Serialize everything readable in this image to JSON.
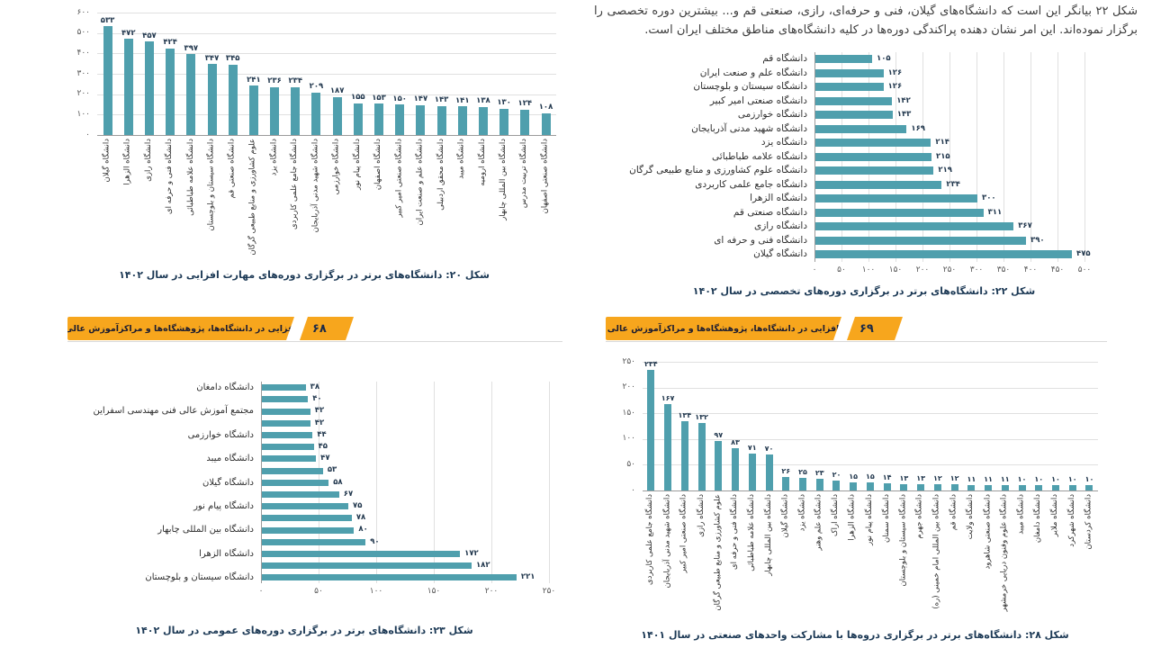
{
  "colors": {
    "bar": "#4f9fad",
    "banner": "#f7a61d",
    "caption_text": "#1d3a56",
    "value_text": "#22384e"
  },
  "right_page": {
    "intro": "شکل ۲۲ بیانگر این است که دانشگاه‌های گیلان، فنی و حرفه‌ای، رازی، صنعتی قم و... بیشترین دوره تخصصی را برگزار نموده‌اند. این امر نشان دهنده پراکندگی دوره‌ها در کلیه دانشگاه‌های مناطق مختلف ایران است."
  },
  "banners": {
    "left": {
      "title": "مهارت‌افزایی در دانشگاه‌ها، پژوهشگاه‌ها و مراکزآموزش عالی کشور",
      "page_number": "۶۸"
    },
    "right": {
      "title": "مهارت‌افزایی در دانشگاه‌ها، پژوهشگاه‌ها و مراکزآموزش عالی کشور",
      "page_number": "۶۹"
    }
  },
  "chart_data": [
    {
      "figure": "شکل ۲۰",
      "type": "bar",
      "orientation": "vertical",
      "caption": "شکل ۲۰: دانشگاه‌های برتر در برگزاری دوره‌های مهارت افزایی در سال ۱۴۰۲",
      "numerals": "persian",
      "grid": true,
      "ymax": 600,
      "yticks": [
        0,
        100,
        200,
        300,
        400,
        500,
        600
      ],
      "categories": [
        "دانشگاه گیلان",
        "دانشگاه الزهرا",
        "دانشگاه رازی",
        "دانشگاه فنی و حرفه ای",
        "دانشگاه علامه طباطبائی",
        "دانشگاه سیستان و بلوچستان",
        "دانشگاه صنعتی قم",
        "علوم کشاورزی و منابع طبیعی گرگان",
        "دانشگاه یزد",
        "دانشگاه جامع علمی کاربردی",
        "دانشگاه شهید مدنی آذربایجان",
        "دانشگاه خوارزمی",
        "دانشگاه پیام نور",
        "دانشگاه اصفهان",
        "دانشگاه صنعتی امیر کبیر",
        "دانشگاه علم و صنعت ایران",
        "دانشگاه محقق اردبیلی",
        "دانشگاه میبد",
        "دانشگاه ارومیه",
        "دانشگاه بین المللی چابهار",
        "دانشگاه تربیت مدرس",
        "دانشگاه صنعتی اصفهان"
      ],
      "values": [
        533,
        472,
        457,
        424,
        397,
        347,
        345,
        241,
        236,
        234,
        209,
        187,
        155,
        153,
        150,
        147,
        143,
        141,
        138,
        130,
        124,
        108
      ]
    },
    {
      "figure": "شکل ۲۲",
      "type": "bar",
      "orientation": "horizontal",
      "caption": "شکل ۲۲:  دانشگاه‌های برتر در برگزاری دوره‌های  تخصصی در سال ۱۴۰۲",
      "numerals": "persian",
      "grid": true,
      "xmax": 500,
      "xticks": [
        0,
        50,
        100,
        150,
        200,
        250,
        300,
        350,
        400,
        450,
        500
      ],
      "categories": [
        "دانشگاه قم",
        "دانشگاه علم و صنعت ایران",
        "دانشگاه سیستان و بلوچستان",
        "دانشگاه صنعتی امیر کبیر",
        "دانشگاه خوارزمی",
        "دانشگاه شهید مدنی آذربایجان",
        "دانشگاه یزد",
        "دانشگاه علامه طباطبائی",
        "دانشگاه علوم کشاورزی و منابع طبیعی گرگان",
        "دانشگاه جامع علمی کاربردی",
        "دانشگاه الزهرا",
        "دانشگاه صنعتی قم",
        "دانشگاه رازی",
        "دانشگاه فنی و حرفه ای",
        "دانشگاه گیلان"
      ],
      "values": [
        105,
        126,
        126,
        142,
        143,
        169,
        214,
        215,
        219,
        234,
        300,
        311,
        367,
        390,
        475
      ]
    },
    {
      "figure": "شکل ۲۳",
      "type": "bar",
      "orientation": "horizontal",
      "caption": "شکل ۲۳: دانشگاه‌های برتر در برگزاری دوره‌های عمومی در سال ۱۴۰۲",
      "numerals": "persian",
      "grid": true,
      "xmax": 250,
      "xticks": [
        0,
        50,
        100,
        150,
        200,
        250
      ],
      "categories": [
        "دانشگاه دامغان",
        "",
        "مجتمع آموزش عالی فنی مهندسی اسفراین",
        "",
        "دانشگاه خوارزمی",
        "",
        "دانشگاه میبد",
        "",
        "دانشگاه گیلان",
        "",
        "دانشگاه پیام نور",
        "",
        "دانشگاه بین المللی چابهار",
        "",
        "دانشگاه الزهرا",
        "",
        "دانشگاه سیستان و بلوچستان"
      ],
      "values": [
        38,
        40,
        42,
        42,
        44,
        45,
        47,
        53,
        58,
        67,
        75,
        78,
        80,
        90,
        172,
        182,
        221
      ]
    },
    {
      "figure": "شکل ۲۸",
      "type": "bar",
      "orientation": "vertical",
      "caption": "شکل ۲۸: دانشگاه‌های برتر در برگزاری دروه‌ها با مشارکت واحدهای صنعتی در سال ۱۴۰۱",
      "numerals": "persian",
      "grid": true,
      "ymax": 250,
      "yticks": [
        0,
        50,
        100,
        150,
        200,
        250
      ],
      "categories": [
        "دانشگاه جامع علمی کاربردی",
        "دانشگاه شهید مدنی آذربایجان",
        "دانشگاه صنعتی امیر کبیر",
        "دانشگاه رازی",
        "علوم کشاورزی و منابع طبیعی گرگان",
        "دانشگاه فنی و حرفه ای",
        "دانشگاه علامه طباطبائی",
        "دانشگاه بین المللی چابهار",
        "دانشگاه گیلان",
        "دانشگاه یزد",
        "دانشگاه علم وهنر",
        "دانشگاه اراک",
        "دانشگاه الزهرا",
        "دانشگاه پیام نور",
        "دانشگاه سمنان",
        "دانشگاه سیستان و بلوچستان",
        "دانشگاه جهرم",
        "دانشگاه بین المللی امام خمینی (ره)",
        "دانشگاه قم",
        "دانشگاه ولایت",
        "دانشگاه صنعتی شاهرود",
        "دانشگاه علوم وفنون دریایی خرمشهر",
        "دانشگاه میبد",
        "دانشگاه دامغان",
        "دانشگاه ملایر",
        "دانشگاه شهرکرد",
        "دانشگاه کردستان"
      ],
      "values": [
        234,
        167,
        134,
        132,
        97,
        83,
        71,
        70,
        26,
        25,
        23,
        20,
        15,
        15,
        14,
        13,
        13,
        12,
        12,
        11,
        11,
        11,
        10,
        10,
        10,
        10,
        10
      ]
    }
  ]
}
